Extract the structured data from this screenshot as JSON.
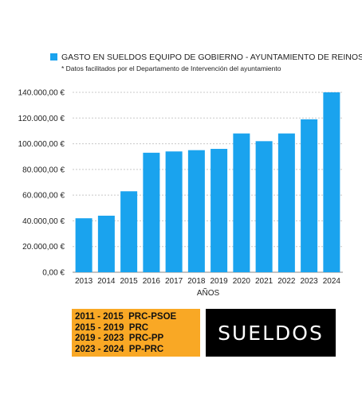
{
  "chart_data": {
    "type": "bar",
    "title": "",
    "legend": {
      "entries": [
        "GASTO EN SUELDOS EQUIPO DE GOBIERNO - AYUNTAMIENTO DE REINOSA"
      ],
      "placement": "top"
    },
    "note": "* Datos facilitados por el Departamento de Intervención del ayuntamiento",
    "xlabel": "AÑOS",
    "ylabel": "",
    "categories": [
      "2013",
      "2014",
      "2015",
      "2016",
      "2017",
      "2018",
      "2019",
      "2020",
      "2021",
      "2022",
      "2023",
      "2024"
    ],
    "series": [
      {
        "name": "GASTO EN SUELDOS EQUIPO DE GOBIERNO - AYUNTAMIENTO DE REINOSA",
        "values": [
          42000,
          44000,
          63000,
          93000,
          94000,
          95000,
          96000,
          108000,
          102000,
          108000,
          119000,
          140000
        ],
        "color": "#1aa3ee"
      }
    ],
    "ylim": [
      0,
      140000
    ],
    "yticks": [
      0,
      20000,
      40000,
      60000,
      80000,
      100000,
      120000,
      140000
    ],
    "ytick_labels": [
      "0,00 €",
      "20.000,00 €",
      "40.000,00 €",
      "60.000,00 €",
      "80.000,00 €",
      "100.000,00 €",
      "120.000,00 €",
      "140.000,00 €"
    ],
    "grid": "horizontal dashed"
  },
  "periods": [
    "2011 - 2015  PRC-PSOE",
    "2015 - 2019  PRC",
    "2019 - 2023  PRC-PP",
    "2023 - 2024  PP-PRC"
  ],
  "periods_bg": "#f9a825",
  "sueldos_label": "SUELDOS",
  "sueldos_bg": "#000000"
}
